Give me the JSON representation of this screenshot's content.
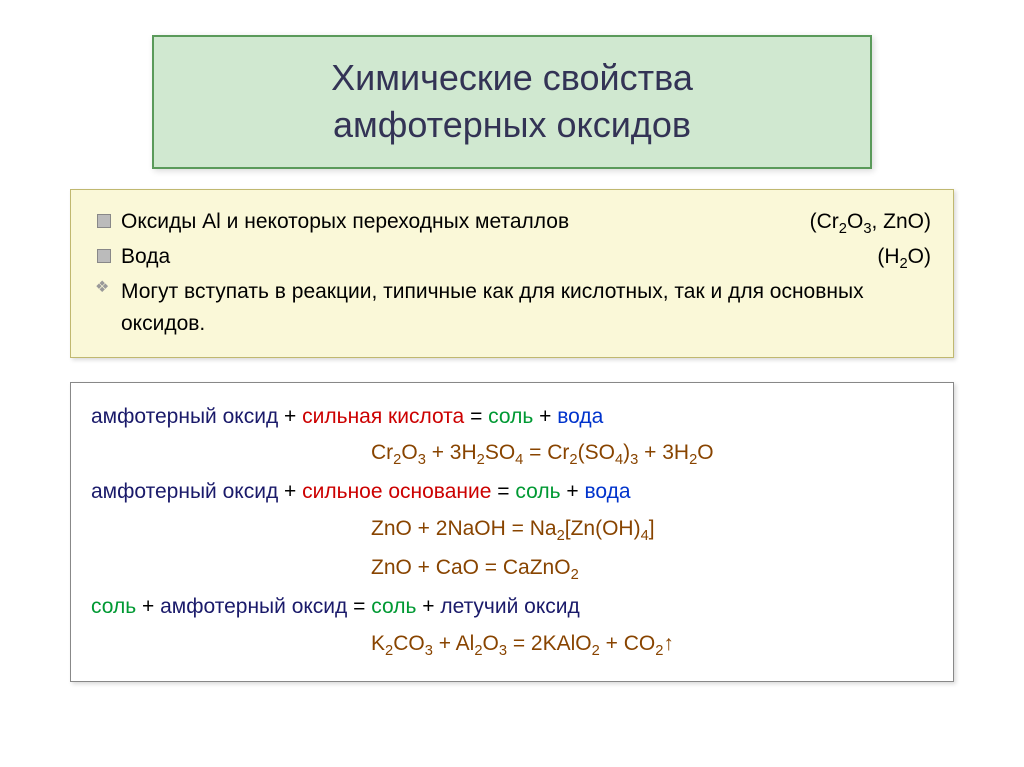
{
  "title": {
    "line1": "Химические свойства",
    "line2": "амфотерных оксидов",
    "bg_color": "#d0e8d0",
    "border_color": "#5a9a5a",
    "text_color": "#333355",
    "fontsize": 36
  },
  "info": {
    "bg_color": "#faf8d8",
    "border_color": "#c0b870",
    "fontsize": 21,
    "items": [
      {
        "bullet": "square",
        "text": "Оксиды Al и некоторых переходных металлов",
        "right": "(Cr₂O₃, ZnO)"
      },
      {
        "bullet": "square",
        "text": "Вода",
        "right": "(H₂O)"
      },
      {
        "bullet": "diamond",
        "text": "Могут вступать в реакции, типичные как для кислотных, так и для основных оксидов.",
        "right": ""
      }
    ]
  },
  "reactions": {
    "border_color": "#888",
    "fontsize": 21,
    "colors": {
      "navy": "#1a1a6a",
      "red": "#cc0000",
      "green": "#009933",
      "blue": "#0033cc",
      "brown": "#884400",
      "black": "#000000"
    },
    "lines": [
      {
        "type": "desc",
        "parts": [
          {
            "c": "navy",
            "t": "амфотерный оксид"
          },
          {
            "c": "black",
            "t": " + "
          },
          {
            "c": "red",
            "t": "сильная кислота"
          },
          {
            "c": "black",
            "t": " = "
          },
          {
            "c": "green",
            "t": "соль"
          },
          {
            "c": "black",
            "t": " + "
          },
          {
            "c": "blue",
            "t": "вода"
          }
        ]
      },
      {
        "type": "eq",
        "parts": [
          {
            "c": "brown",
            "t": "Cr₂O₃ + 3H₂SO₄  = Cr₂(SO₄)₃ + 3H₂O"
          }
        ]
      },
      {
        "type": "desc",
        "parts": [
          {
            "c": "navy",
            "t": "амфотерный оксид"
          },
          {
            "c": "black",
            "t": " + "
          },
          {
            "c": "red",
            "t": "сильное основание"
          },
          {
            "c": "black",
            "t": " = "
          },
          {
            "c": "green",
            "t": "соль"
          },
          {
            "c": "black",
            "t": " + "
          },
          {
            "c": "blue",
            "t": "вода"
          }
        ]
      },
      {
        "type": "eq",
        "parts": [
          {
            "c": "brown",
            "t": "ZnO + 2NaOH = Na₂[Zn(OH)₄]"
          }
        ]
      },
      {
        "type": "eq",
        "parts": [
          {
            "c": "brown",
            "t": "ZnO + CaO = CaZnO₂"
          }
        ]
      },
      {
        "type": "desc",
        "parts": [
          {
            "c": "green",
            "t": "соль"
          },
          {
            "c": "black",
            "t": " + "
          },
          {
            "c": "navy",
            "t": "амфотерный оксид"
          },
          {
            "c": "black",
            "t": " = "
          },
          {
            "c": "green",
            "t": "соль"
          },
          {
            "c": "black",
            "t": " + "
          },
          {
            "c": "navy",
            "t": "летучий оксид"
          }
        ]
      },
      {
        "type": "eq",
        "parts": [
          {
            "c": "brown",
            "t": "K₂CO₃ + Al₂O₃ = 2KAlO₂ + CO₂↑"
          }
        ]
      }
    ]
  }
}
